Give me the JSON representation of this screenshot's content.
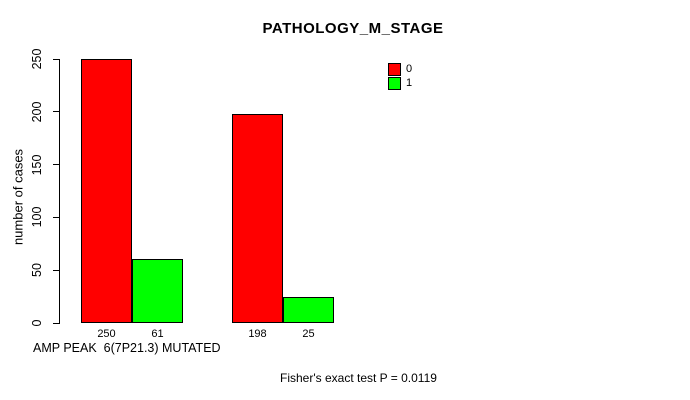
{
  "window": {
    "background": "#ffffff"
  },
  "chart_data": {
    "type": "bar",
    "title": "PATHOLOGY_M_STAGE",
    "xlabel": "AMP PEAK  6(7P21.3) MUTATED",
    "ylabel": "number of cases",
    "categories": [
      "",
      ""
    ],
    "series": [
      {
        "name": "0",
        "color": "#ff0000",
        "values": [
          250,
          198
        ]
      },
      {
        "name": "1",
        "color": "#00ff00",
        "values": [
          61,
          25
        ]
      }
    ],
    "bar_value_labels": [
      "250",
      "61",
      "198",
      "25"
    ],
    "yticks": [
      0,
      50,
      100,
      150,
      200,
      250
    ],
    "ylim": [
      0,
      250
    ],
    "grid": false,
    "legend_position": "top-right",
    "annotation": "Fisher's exact test P = 0.0119",
    "bar_border_color": "#000000",
    "axis_color": "#000000"
  }
}
